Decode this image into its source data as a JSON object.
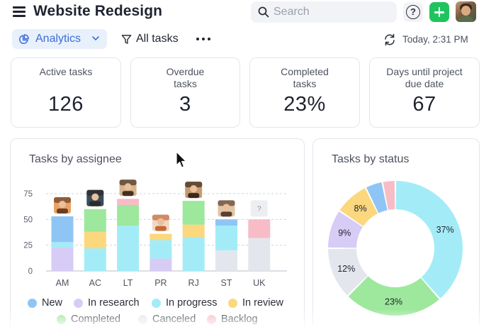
{
  "header": {
    "title": "Website Redesign",
    "search_placeholder": "Search",
    "help_glyph": "?"
  },
  "toolbar": {
    "view_label": "Analytics",
    "filter_label": "All tasks",
    "timestamp": "Today, 2:31 PM"
  },
  "stats": [
    {
      "label": "Active tasks",
      "value": "126"
    },
    {
      "label": "Overdue tasks",
      "value": "3"
    },
    {
      "label": "Completed tasks",
      "value": "23%"
    },
    {
      "label": "Days until project due date",
      "value": "67"
    }
  ],
  "assignee_panel": {
    "title": "Tasks by assignee",
    "unknown_avatar_glyph": "?"
  },
  "status_panel": {
    "title": "Tasks by status"
  },
  "colors": {
    "new": "#8fc5f5",
    "in_research": "#d7ccf6",
    "in_progress": "#a3ecf7",
    "in_review": "#fbd77e",
    "completed": "#9de89c",
    "canceled": "#e4e6ee",
    "backlog": "#f8bcc7",
    "accent": "#3b6ed6",
    "add_button": "#1fc45f"
  },
  "legend": [
    {
      "key": "new",
      "label": "New"
    },
    {
      "key": "in_research",
      "label": "In research"
    },
    {
      "key": "in_progress",
      "label": "In progress"
    },
    {
      "key": "in_review",
      "label": "In review"
    },
    {
      "key": "completed",
      "label": "Completed"
    },
    {
      "key": "canceled",
      "label": "Canceled"
    },
    {
      "key": "backlog",
      "label": "Backlog"
    }
  ],
  "chart_data": [
    {
      "type": "bar",
      "stacked": true,
      "title": "Tasks by assignee",
      "categories": [
        "AM",
        "AC",
        "LT",
        "PR",
        "RJ",
        "ST",
        "UK"
      ],
      "y_ticks": [
        0,
        25,
        50,
        75
      ],
      "ylim": [
        0,
        80
      ],
      "grid": true,
      "series": [
        {
          "name": "In research",
          "key": "in_research",
          "values": [
            23,
            0,
            0,
            12,
            0,
            0,
            0
          ]
        },
        {
          "name": "In progress",
          "key": "in_progress",
          "values": [
            5,
            22,
            44,
            18,
            33,
            24,
            0
          ]
        },
        {
          "name": "New",
          "key": "new",
          "values": [
            25,
            0,
            0,
            0,
            0,
            0,
            0
          ]
        },
        {
          "name": "In review",
          "key": "in_review",
          "values": [
            0,
            16,
            0,
            6,
            12,
            0,
            0
          ]
        },
        {
          "name": "Completed",
          "key": "completed",
          "values": [
            0,
            22,
            20,
            0,
            23,
            0,
            0
          ]
        },
        {
          "name": "Canceled",
          "key": "canceled",
          "values": [
            0,
            0,
            0,
            0,
            0,
            20,
            32
          ]
        },
        {
          "name": "Backlog",
          "key": "backlog",
          "values": [
            0,
            0,
            6,
            0,
            0,
            0,
            18
          ]
        }
      ],
      "extra_segments": [
        {
          "category": "ST",
          "key": "new",
          "value": 6
        }
      ]
    },
    {
      "type": "pie",
      "donut": true,
      "title": "Tasks by status",
      "slices": [
        {
          "key": "in_progress",
          "value": 37,
          "label": "37%"
        },
        {
          "key": "completed",
          "value": 23,
          "label": "23%"
        },
        {
          "key": "canceled",
          "value": 12,
          "label": "12%"
        },
        {
          "key": "in_research",
          "value": 9,
          "label": "9%"
        },
        {
          "key": "in_review",
          "value": 8,
          "label": "8%"
        },
        {
          "key": "new",
          "value": 4,
          "label": ""
        },
        {
          "key": "backlog",
          "value": 3,
          "label": ""
        }
      ]
    }
  ]
}
